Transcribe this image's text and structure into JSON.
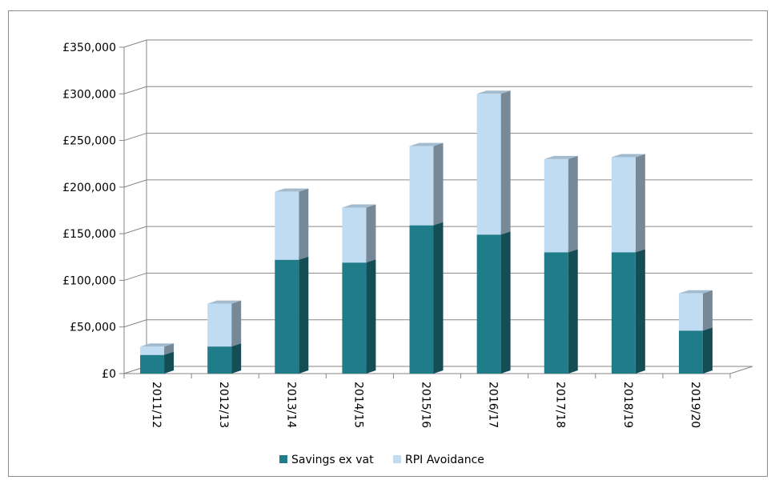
{
  "chart_data": {
    "type": "bar",
    "stacked": true,
    "three_d": true,
    "categories": [
      "2011/12",
      "2012/13",
      "2013/14",
      "2014/15",
      "2015/16",
      "2016/17",
      "2017/18",
      "2018/19",
      "2019/20"
    ],
    "series": [
      {
        "name": "Savings ex vat",
        "color": "#217c8a",
        "values": [
          20000,
          29000,
          122000,
          119000,
          159000,
          149000,
          130000,
          130000,
          46000
        ]
      },
      {
        "name": "RPI Avoidance",
        "color": "#c0dcf2",
        "values": [
          9000,
          46000,
          73000,
          59000,
          85000,
          151000,
          100000,
          102000,
          40000
        ]
      }
    ],
    "y_ticks": [
      "£0",
      "£50,000",
      "£100,000",
      "£150,000",
      "£200,000",
      "£250,000",
      "£300,000",
      "£350,000"
    ],
    "ylim": [
      0,
      350000
    ],
    "grid": true,
    "legend_position": "bottom",
    "title": "",
    "xlabel": "",
    "ylabel": ""
  }
}
